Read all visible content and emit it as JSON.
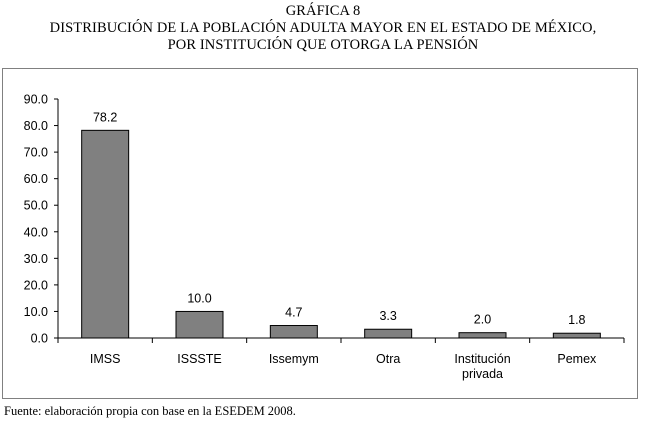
{
  "title": {
    "line1": "GRÁFICA 8",
    "line2": "DISTRIBUCIÓN DE LA POBLACIÓN ADULTA MAYOR  EN EL ESTADO DE MÉXICO,",
    "line3": "POR INSTITUCIÓN QUE OTORGA LA PENSIÓN"
  },
  "footnote": "Fuente: elaboración propia con base en la ESEDEM 2008.",
  "colors": {
    "bar_fill": "#808080",
    "bar_stroke": "#000000",
    "axis": "#000000",
    "frame": "#808080"
  },
  "chart_data": {
    "type": "bar",
    "categories": [
      "IMSS",
      "ISSSTE",
      "Issemym",
      "Otra",
      "Institución privada",
      "Pemex"
    ],
    "category_lines": [
      [
        "IMSS"
      ],
      [
        "ISSSTE"
      ],
      [
        "Issemym"
      ],
      [
        "Otra"
      ],
      [
        "Institución",
        "privada"
      ],
      [
        "Pemex"
      ]
    ],
    "values": [
      78.2,
      10.0,
      4.7,
      3.3,
      2.0,
      1.8
    ],
    "value_labels": [
      "78.2",
      "10.0",
      "4.7",
      "3.3",
      "2.0",
      "1.8"
    ],
    "title": "",
    "xlabel": "",
    "ylabel": "",
    "ylim": [
      0,
      90
    ],
    "yticks": [
      "0.0",
      "10.0",
      "20.0",
      "30.0",
      "40.0",
      "50.0",
      "60.0",
      "70.0",
      "80.0",
      "90.0"
    ],
    "grid": false,
    "legend": "none"
  }
}
